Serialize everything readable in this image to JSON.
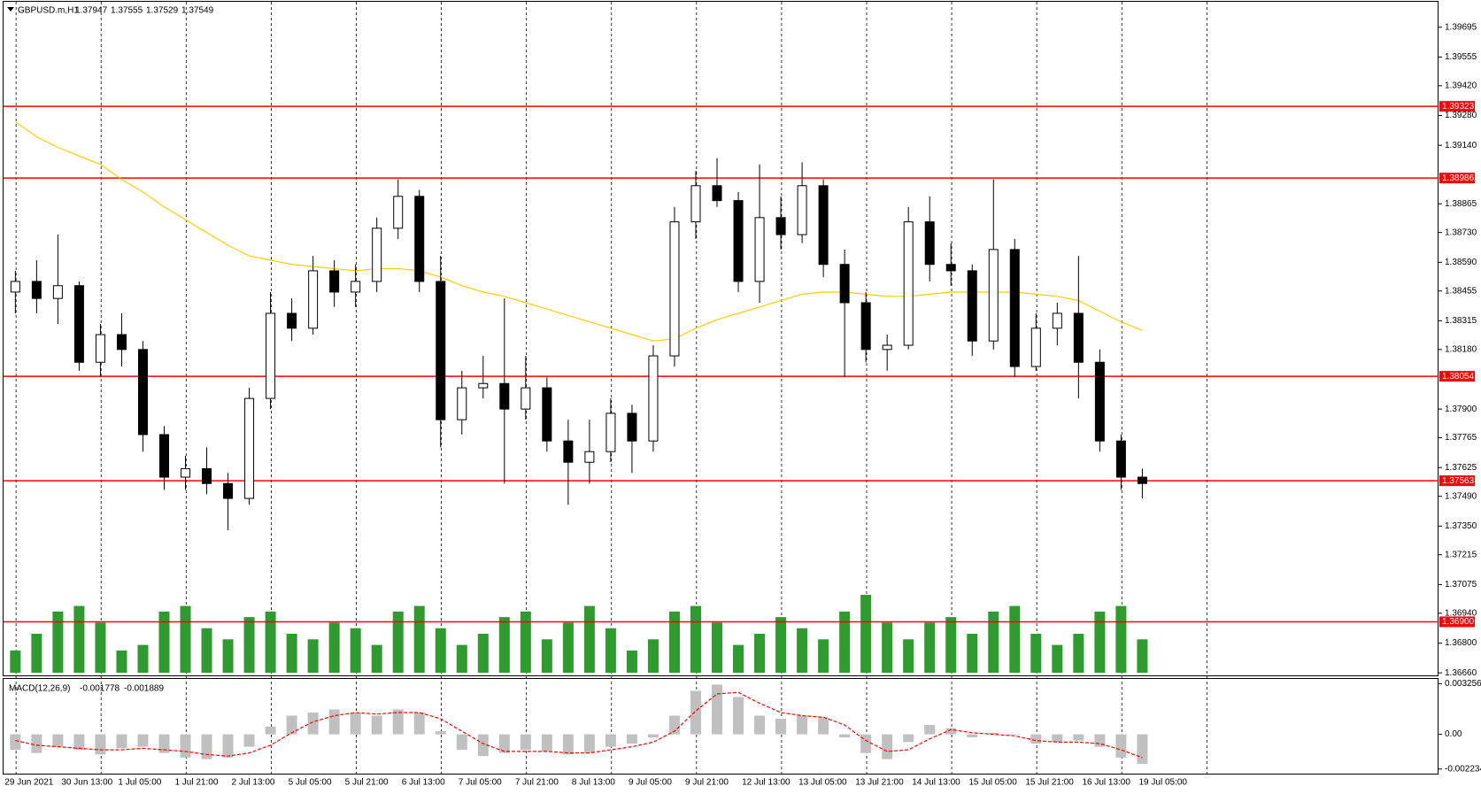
{
  "chart_data": {
    "type": "candlestick",
    "symbol": "GBPUSD.m,H1",
    "quote": [
      1.37947,
      1.37555,
      1.37529,
      1.37549
    ],
    "ylim": [
      1.36648,
      1.39823
    ],
    "yticks": [
      1.39695,
      1.39555,
      {
        "value": 1.3942,
        "label": "1.39420"
      },
      {
        "value": 1.3928,
        "label": "1.39280"
      },
      {
        "value": 1.3914,
        "label": "1.39140"
      },
      1.38865,
      {
        "value": 1.3873,
        "label": "1.38730"
      },
      {
        "value": 1.3859,
        "label": "1.38590"
      },
      1.38455,
      1.38315,
      {
        "value": 1.3818,
        "label": "1.38180"
      },
      {
        "value": 1.379,
        "label": "1.37900"
      },
      1.37765,
      1.37625,
      {
        "value": 1.3749,
        "label": "1.37490"
      },
      {
        "value": 1.3735,
        "label": "1.37350"
      },
      1.37215,
      1.37075,
      {
        "value": 1.3694,
        "label": "1.36940"
      },
      {
        "value": 1.368,
        "label": "1.36800"
      },
      {
        "value": 1.3666,
        "label": "1.36660"
      }
    ],
    "levels": {
      "color": "#ff0000",
      "values": [
        1.39323,
        1.38986,
        1.38054,
        1.37563,
        {
          "value": 1.369,
          "label": "1.36900"
        }
      ]
    },
    "x_labels": [
      "29 Jun 2021",
      "30 Jun 13:00",
      "1 Jul 05:00",
      "1 Jul 21:00",
      "2 Jul 13:00",
      "5 Jul 05:00",
      "5 Jul 21:00",
      "6 Jul 13:00",
      "7 Jul 05:00",
      "7 Jul 21:00",
      "8 Jul 13:00",
      "9 Jul 05:00",
      "9 Jul 21:00",
      "12 Jul 13:00",
      "13 Jul 05:00",
      "13 Jul 21:00",
      "14 Jul 13:00",
      "15 Jul 05:00",
      "15 Jul 21:00",
      "16 Jul 13:00",
      "19 Jul 05:00"
    ],
    "open": [
      1.3845,
      1.385,
      1.3842,
      1.3848,
      1.3812,
      1.3825,
      1.3818,
      1.3778,
      1.3758,
      1.3762,
      1.3755,
      1.3748,
      1.3795,
      1.3835,
      1.3828,
      1.3855,
      1.3845,
      1.385,
      1.3875,
      1.389,
      1.385,
      1.3785,
      1.38,
      1.3802,
      1.379,
      1.38,
      1.3775,
      1.3765,
      1.377,
      1.3788,
      1.3775,
      1.3815,
      1.3878,
      1.3895,
      1.3888,
      1.385,
      1.388,
      1.3872,
      1.3895,
      1.3858,
      1.384,
      1.3818,
      1.382,
      1.3878,
      1.3858,
      1.3855,
      1.3822,
      1.3865,
      1.381,
      1.3828,
      1.3835,
      1.3812,
      1.3775,
      1.3758
    ],
    "high": [
      1.3855,
      1.386,
      1.3872,
      1.385,
      1.383,
      1.3835,
      1.3822,
      1.3782,
      1.3768,
      1.3772,
      1.376,
      1.38,
      1.3845,
      1.3842,
      1.3862,
      1.386,
      1.3858,
      1.388,
      1.3898,
      1.3893,
      1.3862,
      1.3808,
      1.3815,
      1.3842,
      1.3815,
      1.3805,
      1.3785,
      1.3785,
      1.3795,
      1.3792,
      1.382,
      1.3885,
      1.3902,
      1.3908,
      1.3892,
      1.3905,
      1.389,
      1.3906,
      1.3898,
      1.3865,
      1.3845,
      1.3825,
      1.3885,
      1.389,
      1.3868,
      1.3858,
      1.3898,
      1.387,
      1.3835,
      1.384,
      1.3862,
      1.3818,
      1.3778,
      1.3762
    ],
    "low": [
      1.3835,
      1.3835,
      1.383,
      1.3808,
      1.3805,
      1.381,
      1.377,
      1.3752,
      1.3752,
      1.375,
      1.3733,
      1.3745,
      1.379,
      1.3822,
      1.3825,
      1.3838,
      1.3838,
      1.3845,
      1.387,
      1.3845,
      1.3772,
      1.3778,
      1.3795,
      1.3755,
      1.3785,
      1.377,
      1.3745,
      1.3755,
      1.3765,
      1.376,
      1.377,
      1.381,
      1.387,
      1.3885,
      1.3845,
      1.384,
      1.3865,
      1.3868,
      1.3852,
      1.3805,
      1.3812,
      1.3808,
      1.3818,
      1.385,
      1.3848,
      1.3815,
      1.3818,
      1.3805,
      1.3808,
      1.382,
      1.3795,
      1.377,
      1.3752,
      1.3748
    ],
    "close": [
      1.385,
      1.3842,
      1.3848,
      1.3812,
      1.3825,
      1.3818,
      1.3778,
      1.3758,
      1.3762,
      1.3755,
      1.3748,
      1.3795,
      1.3835,
      1.3828,
      1.3855,
      1.3845,
      1.385,
      1.3875,
      1.389,
      1.385,
      1.3785,
      1.38,
      1.3802,
      1.379,
      1.38,
      1.3775,
      1.3765,
      1.377,
      1.3788,
      1.3775,
      1.3815,
      1.3878,
      1.3895,
      1.3888,
      1.385,
      1.388,
      1.3872,
      1.3895,
      1.3858,
      1.384,
      1.3818,
      1.382,
      1.3878,
      1.3858,
      1.3855,
      1.3822,
      1.3865,
      1.381,
      1.3828,
      1.3835,
      1.3812,
      1.3775,
      1.3758,
      1.3755
    ],
    "ma": {
      "color": "#ffcc00",
      "values": [
        1.3925,
        1.3918,
        1.3913,
        1.3909,
        1.3905,
        1.3898,
        1.3892,
        1.3885,
        1.3879,
        1.3873,
        1.3867,
        1.3862,
        1.386,
        1.3858,
        1.3857,
        1.3856,
        1.3855,
        1.3856,
        1.3856,
        1.3855,
        1.3852,
        1.3848,
        1.3845,
        1.3843,
        1.384,
        1.3837,
        1.3834,
        1.3831,
        1.3828,
        1.3825,
        1.3822,
        1.3823,
        1.3828,
        1.3832,
        1.3835,
        1.3838,
        1.3841,
        1.3844,
        1.3845,
        1.3845,
        1.3844,
        1.3843,
        1.3843,
        1.3844,
        1.3845,
        1.3845,
        1.3845,
        1.3845,
        1.3844,
        1.3843,
        1.3841,
        1.3836,
        1.3831,
        1.3827
      ]
    },
    "volume": {
      "color": "#2e9b2e",
      "values": [
        20,
        35,
        55,
        60,
        45,
        20,
        25,
        55,
        60,
        40,
        30,
        50,
        55,
        35,
        30,
        45,
        40,
        25,
        55,
        60,
        40,
        25,
        35,
        50,
        55,
        30,
        45,
        60,
        40,
        20,
        30,
        55,
        60,
        45,
        25,
        35,
        50,
        40,
        30,
        55,
        70,
        45,
        30,
        45,
        50,
        35,
        55,
        60,
        35,
        25,
        35,
        55,
        60,
        30
      ]
    },
    "macd": {
      "type": "bar",
      "title": "MACD(12,26,9)",
      "readout": [
        -0.001778,
        -0.001889
      ],
      "ylim": [
        -0.00253,
        0.00362
      ],
      "yticks": [
        0.003256,
        {
          "value": 0,
          "label": "0.00"
        },
        -0.002234
      ],
      "histogram": {
        "color": "#c0c0c0",
        "values": [
          -0.001,
          -0.0012,
          -0.0008,
          -0.001,
          -0.0013,
          -0.0009,
          -0.0008,
          -0.0012,
          -0.0015,
          -0.0016,
          -0.0015,
          -0.0008,
          0.0005,
          0.0012,
          0.0014,
          0.0016,
          0.0014,
          0.0012,
          0.0016,
          0.0014,
          0.0002,
          -0.001,
          -0.0014,
          -0.0012,
          -0.001,
          -0.0011,
          -0.0013,
          -0.0012,
          -0.0008,
          -0.0006,
          -0.0002,
          0.0012,
          0.0028,
          0.0032,
          0.0024,
          0.0012,
          0.001,
          0.0012,
          0.0011,
          -0.0002,
          -0.0012,
          -0.0016,
          -0.0005,
          0.0006,
          0.0004,
          -0.0002,
          0.0001,
          0.0,
          -0.0006,
          -0.0005,
          -0.0004,
          -0.0008,
          -0.0015,
          -0.0019
        ]
      },
      "signal": {
        "color": "#ff0000",
        "values": [
          -0.0004,
          -0.0007,
          -0.0008,
          -0.0009,
          -0.001,
          -0.001,
          -0.0009,
          -0.001,
          -0.0011,
          -0.0013,
          -0.0014,
          -0.0012,
          -0.0007,
          0.0001,
          0.0008,
          0.0012,
          0.0014,
          0.0013,
          0.0014,
          0.0014,
          0.001,
          0.0002,
          -0.0006,
          -0.0011,
          -0.0011,
          -0.0011,
          -0.0012,
          -0.0012,
          -0.001,
          -0.0008,
          -0.0005,
          0.0002,
          0.0015,
          0.0026,
          0.0027,
          0.002,
          0.0014,
          0.0012,
          0.0011,
          0.0006,
          -0.0004,
          -0.0011,
          -0.001,
          -0.0003,
          0.0003,
          0.0001,
          0.0,
          -0.0001,
          -0.0004,
          -0.0005,
          -0.0005,
          -0.0006,
          -0.001,
          -0.0015
        ]
      }
    }
  }
}
